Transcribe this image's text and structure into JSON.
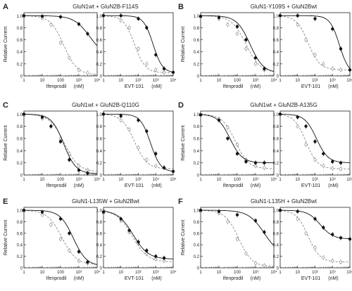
{
  "figure": {
    "y_ticks": [
      "0",
      "0.2",
      "0.4",
      "0.6",
      "0.8",
      "1.0"
    ],
    "x_ticks": [
      "1",
      "10",
      "10²",
      "10³",
      "10⁴"
    ],
    "x_ticks_ifen": [
      "1",
      "10",
      "100",
      "10³",
      "10⁴"
    ],
    "ylabel": "Relative Current",
    "xlabel_ifen": "Ifenprodil",
    "xlabel_evt": "EVT-101",
    "unit": "(nM)",
    "colors": {
      "black": "#111111",
      "gray": "#8a8a8a"
    }
  },
  "chart_data": [
    {
      "type": "line",
      "letter": "A",
      "title": "GluN1wt + GluN2B-F114S",
      "xlog": true,
      "xlim": [
        1,
        10000
      ],
      "ylim": [
        0,
        1.05
      ],
      "ifenprodil": {
        "solid": {
          "ic50": 4000,
          "hill": 1.0,
          "bottom": 0.3,
          "x": [
            1,
            10,
            100,
            1000,
            3000
          ],
          "y": [
            1.0,
            0.99,
            0.98,
            0.86,
            0.7
          ]
        },
        "dashed": {
          "ic50": 150,
          "hill": 1.2,
          "bottom": 0.02,
          "x": [
            1,
            10,
            30,
            100,
            300,
            1000,
            3000
          ],
          "y": [
            0.98,
            0.96,
            0.85,
            0.55,
            0.3,
            0.1,
            0.05
          ]
        }
      },
      "evt101": {
        "solid": {
          "ic50": 700,
          "hill": 1.6,
          "bottom": 0.05,
          "x": [
            1,
            10,
            100,
            300,
            1000,
            3000,
            10000
          ],
          "y": [
            1.0,
            1.0,
            0.95,
            0.8,
            0.35,
            0.12,
            0.06
          ]
        },
        "dashed": {
          "ic50": 60,
          "hill": 1.4,
          "bottom": 0.05,
          "x": [
            1,
            10,
            30,
            100,
            300,
            1000,
            3000
          ],
          "y": [
            1.0,
            0.92,
            0.8,
            0.45,
            0.2,
            0.1,
            0.06
          ]
        }
      }
    },
    {
      "type": "line",
      "letter": "B",
      "title": "GluN1-Y109S + GluN2Bwt",
      "xlog": true,
      "xlim": [
        1,
        10000
      ],
      "ylim": [
        0,
        1.05
      ],
      "ifenprodil": {
        "solid": {
          "ic50": 500,
          "hill": 1.2,
          "bottom": 0.05,
          "x": [
            1,
            10,
            100,
            300,
            1000,
            3000
          ],
          "y": [
            0.99,
            0.97,
            0.82,
            0.6,
            0.3,
            0.12
          ]
        },
        "dashed": {
          "ic50": 300,
          "hill": 1.1,
          "bottom": 0.05,
          "x": [
            1,
            10,
            30,
            100,
            300,
            1000,
            3000
          ],
          "y": [
            0.98,
            0.95,
            0.85,
            0.7,
            0.45,
            0.2,
            0.1
          ]
        }
      },
      "evt101": {
        "solid": {
          "ic50": 2500,
          "hill": 1.6,
          "bottom": 0.03,
          "x": [
            1,
            10,
            100,
            1000,
            3000,
            10000
          ],
          "y": [
            1.0,
            1.0,
            0.95,
            0.78,
            0.45,
            0.1
          ]
        },
        "dashed": {
          "ic50": 40,
          "hill": 1.3,
          "bottom": 0.1,
          "x": [
            1,
            10,
            30,
            100,
            300,
            1000,
            3000
          ],
          "y": [
            1.0,
            0.85,
            0.6,
            0.35,
            0.2,
            0.12,
            0.1
          ]
        }
      }
    },
    {
      "type": "line",
      "letter": "C",
      "title": "GluN1wt + GluN2B-Q110G",
      "xlog": true,
      "xlim": [
        1,
        10000
      ],
      "ylim": [
        0,
        1.05
      ],
      "ifenprodil": {
        "solid": {
          "ic50": 150,
          "hill": 1.3,
          "bottom": 0.02,
          "x": [
            1,
            10,
            30,
            100,
            300,
            1000,
            3000
          ],
          "y": [
            1.0,
            0.95,
            0.8,
            0.55,
            0.25,
            0.08,
            0.03
          ]
        },
        "dashed": {
          "ic50": 160,
          "hill": 1.1,
          "bottom": 0.05,
          "x": [
            1,
            10,
            30,
            100,
            300,
            1000,
            3000
          ],
          "y": [
            0.98,
            0.93,
            0.8,
            0.6,
            0.35,
            0.15,
            0.08
          ]
        }
      },
      "evt101": {
        "solid": {
          "ic50": 500,
          "hill": 1.5,
          "bottom": 0.05,
          "x": [
            1,
            10,
            100,
            300,
            1000,
            3000,
            10000
          ],
          "y": [
            1.0,
            0.97,
            0.9,
            0.72,
            0.35,
            0.12,
            0.06
          ]
        },
        "dashed": {
          "ic50": 60,
          "hill": 1.2,
          "bottom": 0.1,
          "x": [
            1,
            10,
            30,
            100,
            300,
            1000,
            3000
          ],
          "y": [
            1.0,
            0.9,
            0.75,
            0.45,
            0.25,
            0.15,
            0.12
          ]
        }
      }
    },
    {
      "type": "line",
      "letter": "D",
      "title": "GluN1wt + GluN2B-A135G",
      "xlog": true,
      "xlim": [
        1,
        10000
      ],
      "ylim": [
        0,
        1.05
      ],
      "ifenprodil": {
        "solid": {
          "ic50": 40,
          "hill": 1.3,
          "bottom": 0.2,
          "x": [
            1,
            10,
            30,
            100,
            300,
            1000,
            3000
          ],
          "y": [
            0.99,
            0.9,
            0.6,
            0.35,
            0.22,
            0.2,
            0.2
          ]
        },
        "dashed": {
          "ic50": 80,
          "hill": 1.2,
          "bottom": 0.1,
          "x": [
            1,
            10,
            30,
            100,
            300,
            1000,
            3000
          ],
          "y": [
            0.98,
            0.92,
            0.78,
            0.5,
            0.25,
            0.15,
            0.12
          ]
        }
      },
      "evt101": {
        "solid": {
          "ic50": 120,
          "hill": 1.3,
          "bottom": 0.2,
          "x": [
            1,
            10,
            30,
            100,
            300,
            1000,
            3000
          ],
          "y": [
            1.0,
            0.95,
            0.8,
            0.55,
            0.35,
            0.22,
            0.2
          ]
        },
        "dashed": {
          "ic50": 30,
          "hill": 1.3,
          "bottom": 0.1,
          "x": [
            1,
            10,
            30,
            100,
            300,
            1000,
            3000
          ],
          "y": [
            1.0,
            0.8,
            0.5,
            0.25,
            0.15,
            0.11,
            0.1
          ]
        }
      }
    },
    {
      "type": "line",
      "letter": "E",
      "title": "GluN1-L135W + GluN2Bwt",
      "xlog": true,
      "xlim": [
        1,
        10000
      ],
      "ylim": [
        0,
        1.05
      ],
      "ifenprodil": {
        "solid": {
          "ic50": 500,
          "hill": 1.2,
          "bottom": 0.03,
          "x": [
            1,
            10,
            100,
            300,
            1000,
            3000
          ],
          "y": [
            1.0,
            0.97,
            0.85,
            0.6,
            0.28,
            0.1
          ]
        },
        "dashed": {
          "ic50": 120,
          "hill": 1.1,
          "bottom": 0.05,
          "x": [
            1,
            10,
            30,
            100,
            300,
            1000,
            3000
          ],
          "y": [
            0.98,
            0.92,
            0.75,
            0.5,
            0.3,
            0.12,
            0.08
          ]
        }
      },
      "evt101": {
        "solid": {
          "ic50": 50,
          "hill": 1.0,
          "bottom": 0.15,
          "x": [
            1,
            10,
            30,
            100,
            300,
            1000,
            3000
          ],
          "y": [
            0.97,
            0.85,
            0.65,
            0.45,
            0.3,
            0.2,
            0.17
          ]
        },
        "dashed": {
          "ic50": 45,
          "hill": 1.0,
          "bottom": 0.1,
          "x": [
            1,
            10,
            30,
            100,
            300,
            1000,
            3000
          ],
          "y": [
            0.95,
            0.82,
            0.62,
            0.42,
            0.25,
            0.15,
            0.12
          ]
        }
      }
    },
    {
      "type": "line",
      "letter": "F",
      "title": "GluN1-L135H + GluN2Bwt",
      "xlog": true,
      "xlim": [
        1,
        10000
      ],
      "ylim": [
        0,
        1.05
      ],
      "ifenprodil": {
        "solid": {
          "ic50": 3000,
          "hill": 1.0,
          "bottom": 0.2,
          "x": [
            1,
            10,
            100,
            1000,
            3000
          ],
          "y": [
            1.0,
            0.98,
            0.92,
            0.82,
            0.62
          ]
        },
        "dashed": {
          "ic50": 120,
          "hill": 1.2,
          "bottom": 0.02,
          "x": [
            1,
            10,
            30,
            100,
            300,
            1000,
            3000
          ],
          "y": [
            0.98,
            0.95,
            0.8,
            0.5,
            0.25,
            0.08,
            0.04
          ]
        }
      },
      "evt101": {
        "solid": {
          "ic50": 200,
          "hill": 1.2,
          "bottom": 0.5,
          "x": [
            1,
            10,
            100,
            300,
            1000,
            3000,
            10000
          ],
          "y": [
            1.0,
            0.98,
            0.85,
            0.7,
            0.58,
            0.52,
            0.5
          ]
        },
        "dashed": {
          "ic50": 40,
          "hill": 1.3,
          "bottom": 0.1,
          "x": [
            1,
            10,
            30,
            100,
            300,
            1000,
            3000
          ],
          "y": [
            0.99,
            0.85,
            0.6,
            0.35,
            0.18,
            0.12,
            0.1
          ]
        }
      }
    }
  ]
}
